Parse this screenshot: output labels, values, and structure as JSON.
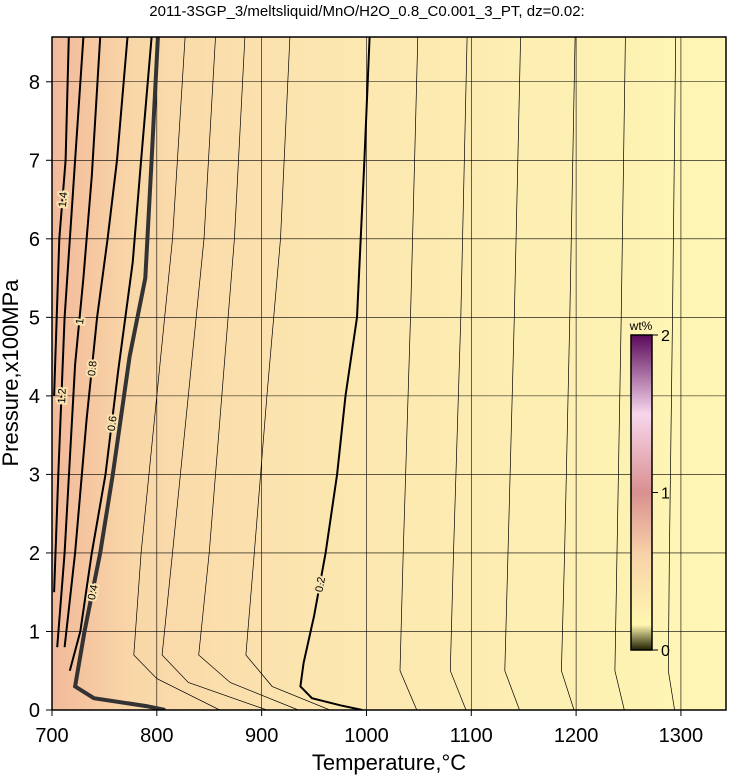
{
  "chart_data": {
    "type": "contour",
    "title": "2011-3SGP_3/meltsliquid/MnO/H2O_0.8_C0.001_3_PT, dz=0.02:",
    "x_label": "Temperature,°C",
    "y_label": "Pressure,x100MPa",
    "xlim": [
      700,
      1343
    ],
    "ylim": [
      0,
      8.57
    ],
    "xticks": [
      700,
      800,
      900,
      1000,
      1100,
      1200,
      1300
    ],
    "yticks": [
      0,
      1,
      2,
      3,
      4,
      5,
      6,
      7,
      8
    ],
    "grid": true,
    "contours": [
      {
        "level": 0.2,
        "x": [
          1003,
          998,
          991,
          980,
          972,
          961,
          950,
          940,
          937,
          948,
          975,
          996
        ],
        "y": [
          8.57,
          7,
          5,
          4,
          3,
          2,
          1.2,
          0.6,
          0.3,
          0.15,
          0.06,
          0
        ]
      },
      {
        "level": 0.4,
        "x": [
          801,
          795,
          789,
          774,
          758,
          746,
          731,
          722,
          740,
          790,
          808
        ],
        "y": [
          8.57,
          7,
          5.5,
          4.5,
          3,
          2,
          1,
          0.3,
          0.15,
          0.05,
          0
        ]
      },
      {
        "level": 0.6,
        "x": [
          795,
          785,
          777,
          763,
          751,
          738,
          727,
          717
        ],
        "y": [
          8.57,
          7,
          5.7,
          4.3,
          3,
          2,
          1,
          0.5
        ]
      },
      {
        "level": 0.8,
        "x": [
          772,
          762,
          753,
          743,
          733,
          722,
          712
        ],
        "y": [
          8.57,
          7,
          6,
          5,
          3.7,
          2,
          0.8
        ]
      },
      {
        "level": 1,
        "x": [
          746,
          738,
          730,
          722,
          712,
          705
        ],
        "y": [
          8.57,
          6.8,
          5.5,
          4.4,
          2,
          0.8
        ]
      },
      {
        "level": 1.2,
        "x": [
          730,
          722,
          712,
          706,
          702
        ],
        "y": [
          8.57,
          7,
          5,
          3,
          1.5
        ]
      },
      {
        "level": 1.4,
        "x": [
          716,
          713,
          707,
          702
        ],
        "y": [
          8.57,
          7,
          6,
          4
        ]
      }
    ],
    "minor_contours": [
      {
        "x": [
          1049,
          1042,
          1035,
          1032,
          1048
        ],
        "y": [
          8.57,
          5,
          2,
          0.5,
          0
        ]
      },
      {
        "x": [
          1096,
          1090,
          1083,
          1080,
          1095
        ],
        "y": [
          8.57,
          5,
          2,
          0.5,
          0
        ]
      },
      {
        "x": [
          1147,
          1141,
          1135,
          1132,
          1146
        ],
        "y": [
          8.57,
          5,
          2,
          0.5,
          0
        ]
      },
      {
        "x": [
          1199,
          1194,
          1189,
          1186,
          1198
        ],
        "y": [
          8.57,
          5,
          2,
          0.5,
          0
        ]
      },
      {
        "x": [
          1247,
          1243,
          1239,
          1237,
          1246
        ],
        "y": [
          8.57,
          5,
          2,
          0.5,
          0
        ]
      },
      {
        "x": [
          1295,
          1292,
          1289,
          1288,
          1294
        ],
        "y": [
          8.57,
          5,
          2,
          0.5,
          0
        ]
      },
      {
        "x": [
          827,
          815,
          800,
          785,
          778,
          800,
          860
        ],
        "y": [
          8.57,
          6,
          4,
          2,
          0.7,
          0.4,
          0
        ]
      },
      {
        "x": [
          856,
          845,
          830,
          815,
          805,
          830,
          905
        ],
        "y": [
          8.57,
          6,
          4,
          2,
          0.7,
          0.35,
          0
        ]
      },
      {
        "x": [
          884,
          874,
          862,
          850,
          840,
          870,
          935
        ],
        "y": [
          8.57,
          6,
          4,
          2,
          0.7,
          0.35,
          0
        ]
      },
      {
        "x": [
          927,
          918,
          905,
          893,
          885,
          910,
          965
        ],
        "y": [
          8.57,
          6,
          4,
          2,
          0.7,
          0.3,
          0
        ]
      }
    ],
    "colorbar": {
      "label": "wt%",
      "lim": [
        0,
        2
      ],
      "ticks": [
        0,
        1,
        2
      ]
    }
  }
}
